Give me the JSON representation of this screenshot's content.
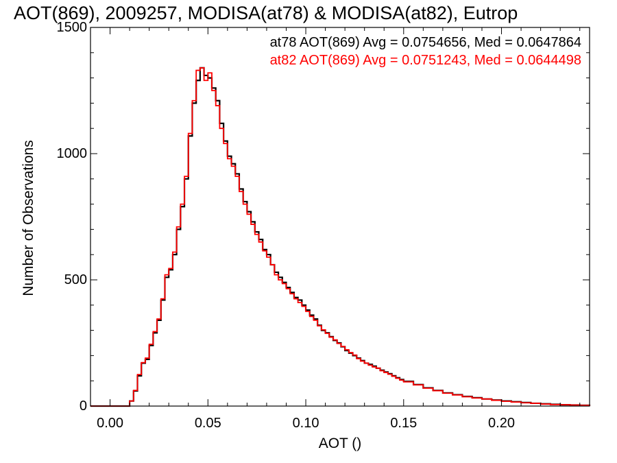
{
  "chart_data": {
    "type": "line",
    "title": "AOT(869), 2009257, MODISA(at78) & MODISA(at82), Eutrop",
    "xlabel": "AOT ()",
    "ylabel": "Number of Observations",
    "xlim": [
      -0.01,
      0.245
    ],
    "ylim": [
      0,
      1500
    ],
    "x_ticks": [
      0.0,
      0.05,
      0.1,
      0.15,
      0.2
    ],
    "x_tick_labels": [
      "0.00",
      "0.05",
      "0.10",
      "0.15",
      "0.20"
    ],
    "y_ticks": [
      0,
      500,
      1000,
      1500
    ],
    "y_tick_labels": [
      "0",
      "500",
      "1000",
      "1500"
    ],
    "grid": false,
    "legend_position": "top-right",
    "step": true,
    "series": [
      {
        "name": "at78 AOT(869) Avg = 0.0754656, Med = 0.0647864",
        "color": "#000000",
        "x": [
          -0.01,
          0.0,
          0.008,
          0.01,
          0.012,
          0.014,
          0.016,
          0.018,
          0.02,
          0.022,
          0.024,
          0.026,
          0.028,
          0.03,
          0.032,
          0.034,
          0.036,
          0.038,
          0.04,
          0.042,
          0.044,
          0.046,
          0.048,
          0.05,
          0.052,
          0.054,
          0.056,
          0.058,
          0.06,
          0.062,
          0.064,
          0.066,
          0.068,
          0.07,
          0.072,
          0.074,
          0.076,
          0.078,
          0.08,
          0.082,
          0.084,
          0.086,
          0.088,
          0.09,
          0.092,
          0.094,
          0.096,
          0.098,
          0.1,
          0.102,
          0.104,
          0.106,
          0.108,
          0.11,
          0.112,
          0.114,
          0.116,
          0.118,
          0.12,
          0.122,
          0.124,
          0.126,
          0.128,
          0.13,
          0.132,
          0.134,
          0.136,
          0.138,
          0.14,
          0.142,
          0.144,
          0.146,
          0.148,
          0.15,
          0.155,
          0.16,
          0.165,
          0.17,
          0.175,
          0.18,
          0.185,
          0.19,
          0.195,
          0.2,
          0.205,
          0.21,
          0.215,
          0.22,
          0.225,
          0.23,
          0.235,
          0.24,
          0.245
        ],
        "y": [
          0,
          0,
          0,
          20,
          60,
          120,
          170,
          185,
          240,
          290,
          340,
          420,
          510,
          540,
          600,
          700,
          790,
          900,
          1070,
          1200,
          1290,
          1340,
          1310,
          1300,
          1260,
          1210,
          1120,
          1050,
          990,
          960,
          920,
          860,
          810,
          770,
          730,
          690,
          660,
          620,
          600,
          560,
          530,
          510,
          490,
          470,
          450,
          430,
          420,
          400,
          380,
          360,
          345,
          320,
          300,
          290,
          275,
          260,
          250,
          235,
          220,
          210,
          200,
          190,
          180,
          170,
          165,
          158,
          150,
          142,
          135,
          128,
          120,
          112,
          105,
          98,
          85,
          72,
          62,
          52,
          45,
          38,
          33,
          28,
          24,
          20,
          17,
          14,
          11,
          9,
          7,
          5,
          4,
          3,
          0
        ]
      },
      {
        "name": "at82 AOT(869) Avg = 0.0751243, Med = 0.0644498",
        "color": "#ff0000",
        "x": [
          -0.01,
          0.0,
          0.008,
          0.01,
          0.012,
          0.014,
          0.016,
          0.018,
          0.02,
          0.022,
          0.024,
          0.026,
          0.028,
          0.03,
          0.032,
          0.034,
          0.036,
          0.038,
          0.04,
          0.042,
          0.044,
          0.046,
          0.048,
          0.05,
          0.052,
          0.054,
          0.056,
          0.058,
          0.06,
          0.062,
          0.064,
          0.066,
          0.068,
          0.07,
          0.072,
          0.074,
          0.076,
          0.078,
          0.08,
          0.082,
          0.084,
          0.086,
          0.088,
          0.09,
          0.092,
          0.094,
          0.096,
          0.098,
          0.1,
          0.102,
          0.104,
          0.106,
          0.108,
          0.11,
          0.112,
          0.114,
          0.116,
          0.118,
          0.12,
          0.122,
          0.124,
          0.126,
          0.128,
          0.13,
          0.132,
          0.134,
          0.136,
          0.138,
          0.14,
          0.142,
          0.144,
          0.146,
          0.148,
          0.15,
          0.155,
          0.16,
          0.165,
          0.17,
          0.175,
          0.18,
          0.185,
          0.19,
          0.195,
          0.2,
          0.205,
          0.21,
          0.215,
          0.22,
          0.225,
          0.23,
          0.235,
          0.24,
          0.245
        ],
        "y": [
          0,
          0,
          0,
          20,
          62,
          125,
          172,
          190,
          245,
          295,
          345,
          425,
          520,
          545,
          610,
          710,
          800,
          910,
          1080,
          1210,
          1330,
          1340,
          1290,
          1320,
          1250,
          1190,
          1100,
          1040,
          980,
          950,
          910,
          850,
          800,
          760,
          720,
          680,
          650,
          615,
          590,
          560,
          520,
          500,
          485,
          465,
          445,
          425,
          410,
          395,
          375,
          355,
          340,
          318,
          302,
          288,
          273,
          262,
          248,
          236,
          223,
          212,
          202,
          188,
          178,
          170,
          162,
          155,
          150,
          140,
          133,
          126,
          118,
          110,
          103,
          96,
          84,
          71,
          61,
          51,
          44,
          37,
          32,
          28,
          23,
          19,
          16,
          13,
          11,
          8,
          6,
          5,
          4,
          3,
          0
        ]
      }
    ]
  }
}
